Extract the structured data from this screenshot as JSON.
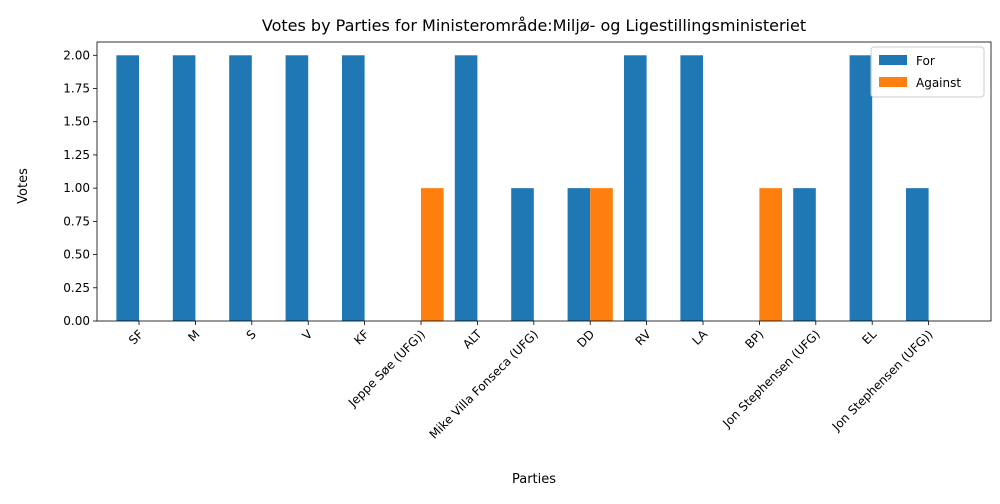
{
  "chart_data": {
    "type": "bar",
    "title": "Votes by Parties for Ministerområde:Miljø- og Ligestillingsministeriet",
    "xlabel": "Parties",
    "ylabel": "Votes",
    "ylim": [
      0,
      2.1
    ],
    "yticks": [
      "0.00",
      "0.25",
      "0.50",
      "0.75",
      "1.00",
      "1.25",
      "1.50",
      "1.75",
      "2.00"
    ],
    "categories": [
      "SF",
      "M",
      "S",
      "V",
      "KF",
      "Jeppe Søe (UFG))",
      "ALT",
      "Mike Villa Fonseca (UFG)",
      "DD",
      "RV",
      "LA",
      "BP)",
      "Jon Stephensen (UFG)",
      "EL",
      "Jon Stephensen (UFG))"
    ],
    "series": [
      {
        "name": "For",
        "color": "#1f77b4",
        "values": [
          2,
          2,
          2,
          2,
          2,
          0,
          2,
          1,
          1,
          2,
          2,
          0,
          1,
          2,
          1
        ]
      },
      {
        "name": "Against",
        "color": "#ff7f0e",
        "values": [
          0,
          0,
          0,
          0,
          0,
          1,
          0,
          0,
          1,
          0,
          0,
          1,
          0,
          0,
          0
        ]
      }
    ],
    "legend_position": "top-right",
    "grid": false
  }
}
